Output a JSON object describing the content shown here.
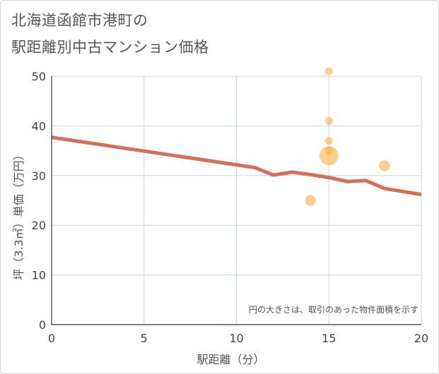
{
  "title_lines": [
    "北海道函館市港町の",
    "駅距離別中古マンション価格"
  ],
  "chart_data": {
    "type": "scatter",
    "title": "北海道函館市港町の駅距離別中古マンション価格",
    "xlabel": "駅距離（分）",
    "ylabel": "坪（3.3㎡）単価（万円）",
    "xlim": [
      0,
      20
    ],
    "ylim": [
      0,
      50
    ],
    "xticks": [
      0,
      5,
      10,
      15,
      20
    ],
    "yticks": [
      0,
      10,
      20,
      30,
      40,
      50
    ],
    "grid": true,
    "note": "円の大きさは、取引のあった物件面積を示す",
    "scatter_points": [
      {
        "x": 15,
        "y": 51,
        "size": 1
      },
      {
        "x": 15,
        "y": 41,
        "size": 1
      },
      {
        "x": 15,
        "y": 37,
        "size": 1
      },
      {
        "x": 15,
        "y": 35,
        "size": 1
      },
      {
        "x": 15,
        "y": 34,
        "size": 6
      },
      {
        "x": 14,
        "y": 25,
        "size": 2
      },
      {
        "x": 18,
        "y": 32,
        "size": 2
      }
    ],
    "trend_line": [
      {
        "x": 0,
        "y": 37.7
      },
      {
        "x": 11,
        "y": 31.6
      },
      {
        "x": 12,
        "y": 30.1
      },
      {
        "x": 13,
        "y": 30.7
      },
      {
        "x": 14,
        "y": 30.2
      },
      {
        "x": 15,
        "y": 29.6
      },
      {
        "x": 16,
        "y": 28.8
      },
      {
        "x": 17,
        "y": 29.0
      },
      {
        "x": 18,
        "y": 27.4
      },
      {
        "x": 20,
        "y": 26.2
      }
    ],
    "colors": {
      "bubble": "#f5b041",
      "trend": "#d4705a",
      "grid": "#c9d6e3",
      "axis": "#333333"
    }
  }
}
